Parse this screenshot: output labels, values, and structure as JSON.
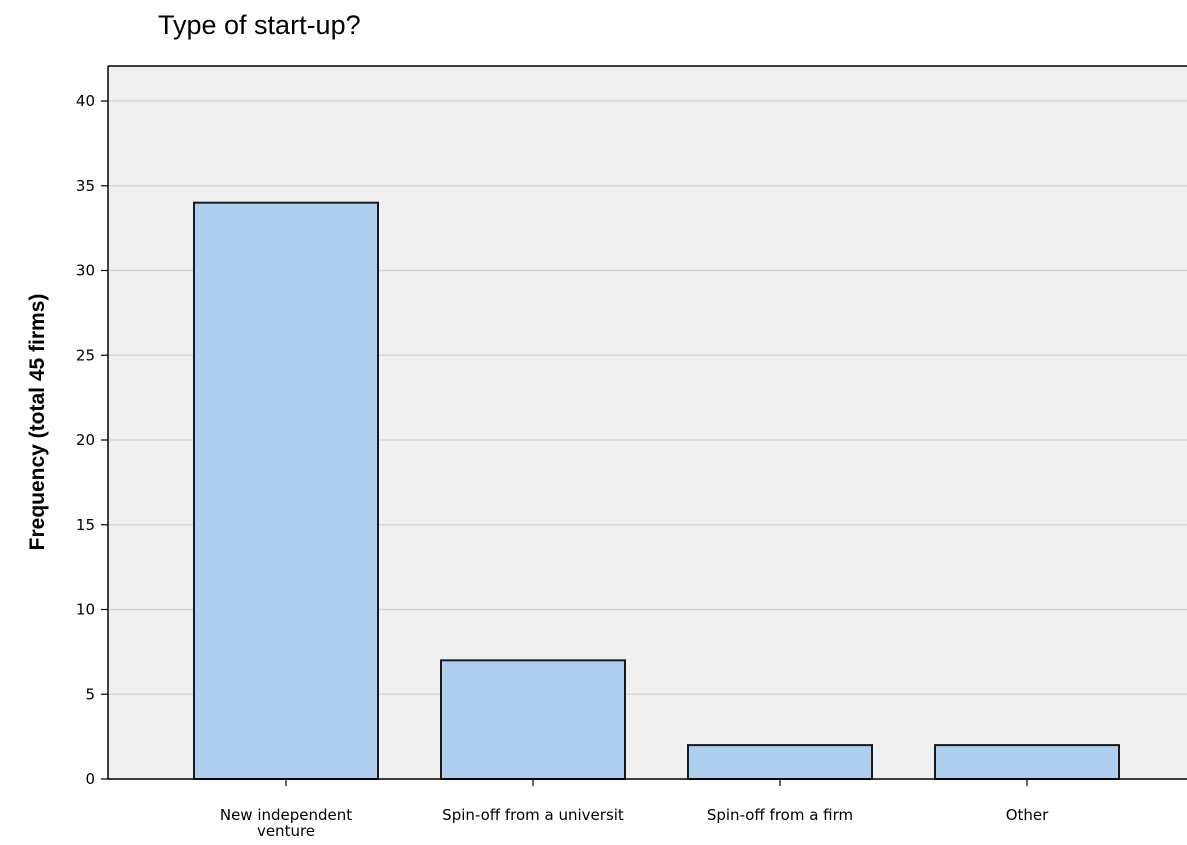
{
  "chart_data": {
    "type": "bar",
    "title": "Type of start-up?",
    "xlabel": "",
    "ylabel": "Frequency (total 45 firms)",
    "categories": [
      [
        "New independent",
        "venture"
      ],
      [
        "Spin-off from a universit"
      ],
      [
        "Spin-off from a firm"
      ],
      [
        "Other"
      ]
    ],
    "values": [
      34,
      7,
      2,
      2
    ],
    "ylim": [
      0,
      41
    ],
    "yticks": [
      0,
      5,
      10,
      15,
      20,
      25,
      30,
      35,
      40
    ],
    "grid": true,
    "colors": {
      "bar_fill": "#aecfee",
      "bar_stroke": "#1a1a1a",
      "plot_background": "#f0f0f0",
      "gridline": "#d4d4d4",
      "axis": "#000000"
    }
  }
}
